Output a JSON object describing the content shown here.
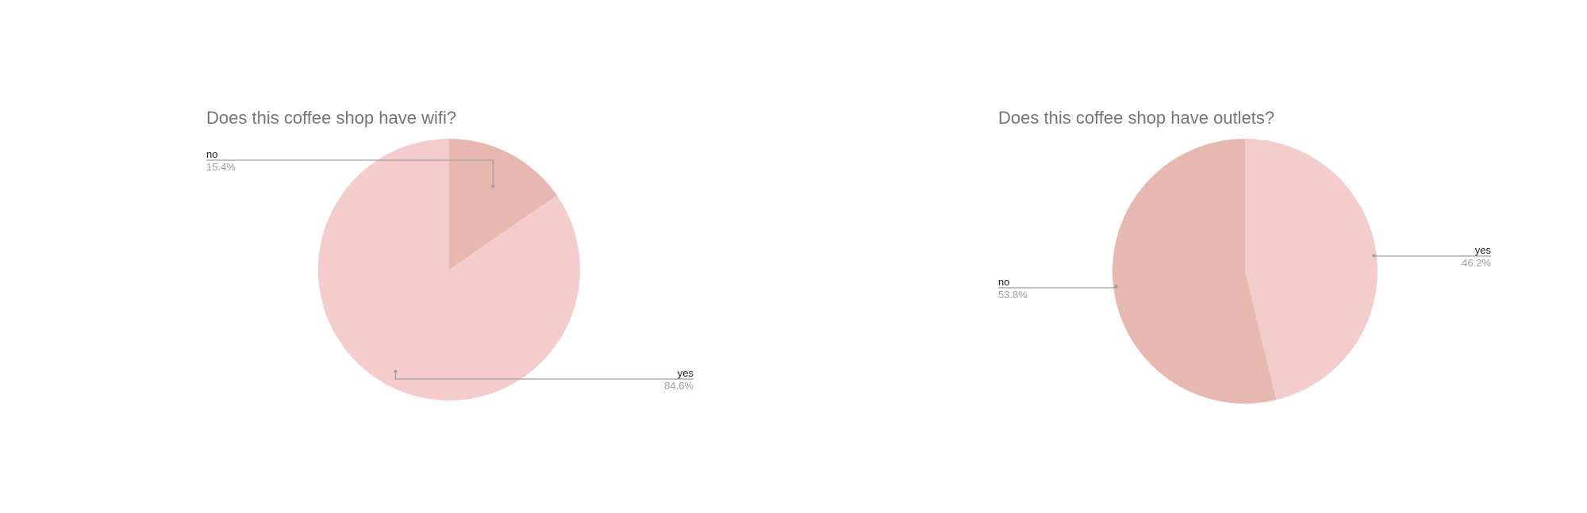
{
  "chart_data": [
    {
      "type": "pie",
      "title": "Does this coffee shop have wifi?",
      "categories": [
        "no",
        "yes"
      ],
      "values": [
        15.4,
        84.6
      ],
      "value_labels": [
        "15.4%",
        "84.6%"
      ],
      "colors": [
        "#e6b8b0",
        "#f4cccb"
      ],
      "start_angle_deg": 0,
      "legend": "labeled"
    },
    {
      "type": "pie",
      "title": "Does this coffee shop have outlets?",
      "categories": [
        "yes",
        "no"
      ],
      "values": [
        46.2,
        53.8
      ],
      "value_labels": [
        "46.2%",
        "53.8%"
      ],
      "colors": [
        "#f4cccb",
        "#e6b8b0"
      ],
      "start_angle_deg": 0,
      "legend": "labeled"
    }
  ]
}
